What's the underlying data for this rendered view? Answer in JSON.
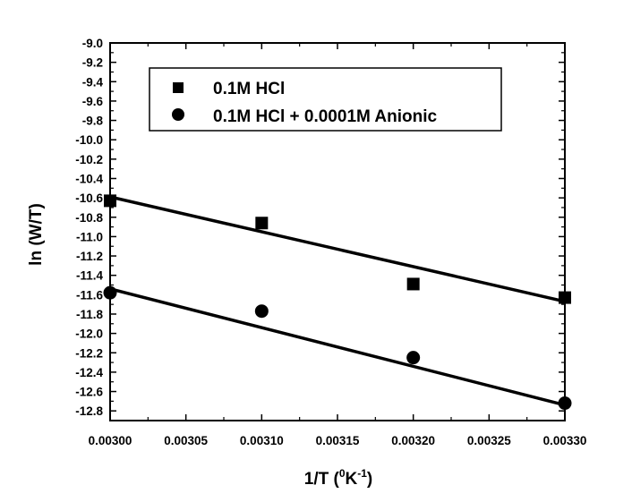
{
  "chart_data": {
    "type": "scatter",
    "xlabel": "1/T",
    "xlabel_unit": "(⁰K⁻¹)",
    "xlabel_unit_parts": [
      "(",
      "0",
      "K",
      "-1",
      ")"
    ],
    "ylabel": "ln (W/T)",
    "xlim": [
      0.003,
      0.0033
    ],
    "ylim": [
      -12.9,
      -9.0
    ],
    "x_ticks": [
      0.003,
      0.00305,
      0.0031,
      0.00315,
      0.0032,
      0.00325,
      0.0033
    ],
    "x_tick_labels": [
      "0.00300",
      "0.00305",
      "0.00310",
      "0.00315",
      "0.00320",
      "0.00325",
      "0.00330"
    ],
    "y_ticks": [
      -9.0,
      -9.2,
      -9.4,
      -9.6,
      -9.8,
      -10.0,
      -10.2,
      -10.4,
      -10.6,
      -10.8,
      -11.0,
      -11.2,
      -11.4,
      -11.6,
      -11.8,
      -12.0,
      -12.2,
      -12.4,
      -12.6,
      -12.8
    ],
    "y_tick_labels": [
      "-9.0",
      "-9.2",
      "-9.4",
      "-9.6",
      "-9.8",
      "-10.0",
      "-10.2",
      "-10.4",
      "-10.6",
      "-10.8",
      "-11.0",
      "-11.2",
      "-11.4",
      "-11.6",
      "-11.8",
      "-12.0",
      "-12.2",
      "-12.4",
      "-12.6",
      "-12.8"
    ],
    "grid": false,
    "legend_position": "top",
    "series": [
      {
        "name": "0.1M HCl",
        "marker": "square",
        "x": [
          0.003,
          0.0031,
          0.0032,
          0.0033
        ],
        "y": [
          -10.63,
          -10.86,
          -11.49,
          -11.63
        ],
        "fit_line": {
          "x": [
            0.003,
            0.0033
          ],
          "y": [
            -10.59,
            -11.67
          ]
        }
      },
      {
        "name": "0.1M HCl + 0.0001M Anionic",
        "marker": "circle",
        "x": [
          0.003,
          0.0031,
          0.0032,
          0.0033
        ],
        "y": [
          -11.58,
          -11.77,
          -12.25,
          -12.72
        ],
        "fit_line": {
          "x": [
            0.003,
            0.0033
          ],
          "y": [
            -11.54,
            -12.74
          ]
        }
      }
    ],
    "colors": {
      "marks": "#000000",
      "background": "#ffffff"
    }
  }
}
